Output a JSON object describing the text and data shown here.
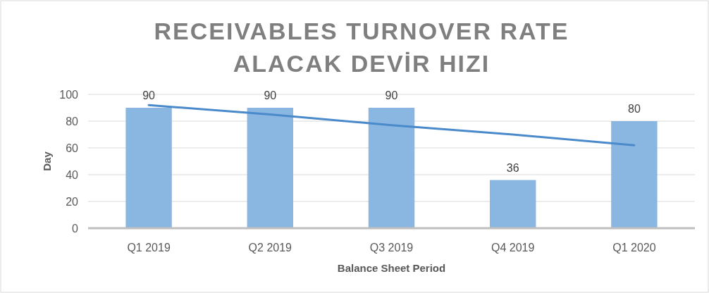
{
  "chart_data": {
    "type": "bar",
    "title": "RECEIVABLES TURNOVER RATE",
    "subtitle": "ALACAK DEVİR HIZI",
    "xlabel": "Balance Sheet Period",
    "ylabel": "Day",
    "categories": [
      "Q1 2019",
      "Q2 2019",
      "Q3 2019",
      "Q4 2019",
      "Q1 2020"
    ],
    "series": [
      {
        "color": "#8ab6e2",
        "values": [
          90,
          90,
          90,
          36,
          80
        ],
        "value_labels": [
          "90",
          "90",
          "90",
          "36",
          "80"
        ]
      },
      {
        "type": "line",
        "color": "#4a8acb",
        "x": [
          "Q1 2019",
          "Q2 2019",
          "Q3 2019",
          "Q4 2019",
          "Q1 2020"
        ],
        "values": [
          92,
          85,
          77,
          70,
          62
        ]
      }
    ],
    "ylim": [
      0,
      100
    ],
    "yticks": [
      0,
      20,
      40,
      60,
      80,
      100
    ],
    "grid": "y"
  }
}
